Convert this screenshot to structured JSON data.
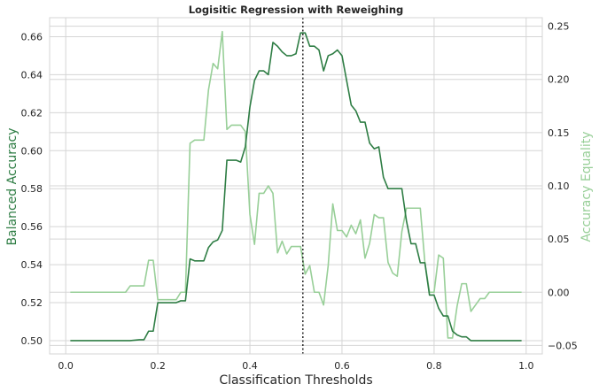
{
  "chart_data": {
    "type": "line",
    "title": "Logisitic Regression with Reweighing",
    "xlabel": "Classification Thresholds",
    "ylabel_left": "Balanced Accuracy",
    "ylabel_right": "Accuracy Equality",
    "xlim": [
      -0.035,
      1.035
    ],
    "ylim_left": [
      0.493,
      0.67
    ],
    "ylim_right": [
      -0.058,
      0.258
    ],
    "x_ticks": [
      0.0,
      0.2,
      0.4,
      0.6,
      0.8,
      1.0
    ],
    "x_tick_labels": [
      "0.0",
      "0.2",
      "0.4",
      "0.6",
      "0.8",
      "1.0"
    ],
    "y_left_ticks": [
      0.5,
      0.52,
      0.54,
      0.56,
      0.58,
      0.6,
      0.62,
      0.64,
      0.66
    ],
    "y_left_tick_labels": [
      "0.50",
      "0.52",
      "0.54",
      "0.56",
      "0.58",
      "0.60",
      "0.62",
      "0.64",
      "0.66"
    ],
    "y_right_ticks": [
      -0.05,
      0.0,
      0.05,
      0.1,
      0.15,
      0.2,
      0.25
    ],
    "y_right_tick_labels": [
      "−0.05",
      "0.00",
      "0.05",
      "0.10",
      "0.15",
      "0.20",
      "0.25"
    ],
    "grid": true,
    "vline_x": 0.515,
    "colors": {
      "balanced_accuracy": "#2e7d44",
      "accuracy_equality": "#98cf98",
      "vline": "#262626",
      "grid": "#d5d5d5",
      "left_label": "#2e7d44",
      "right_label": "#98cf98"
    },
    "series": [
      {
        "axis": "left",
        "points": [
          [
            0.01,
            0.5
          ],
          [
            0.14,
            0.5
          ],
          [
            0.16,
            0.5005
          ],
          [
            0.17,
            0.5005
          ],
          [
            0.18,
            0.505
          ],
          [
            0.19,
            0.505
          ],
          [
            0.2,
            0.52
          ],
          [
            0.24,
            0.52
          ],
          [
            0.25,
            0.521
          ],
          [
            0.26,
            0.521
          ],
          [
            0.27,
            0.543
          ],
          [
            0.28,
            0.542
          ],
          [
            0.3,
            0.542
          ],
          [
            0.31,
            0.549
          ],
          [
            0.32,
            0.552
          ],
          [
            0.33,
            0.553
          ],
          [
            0.34,
            0.558
          ],
          [
            0.35,
            0.595
          ],
          [
            0.37,
            0.595
          ],
          [
            0.38,
            0.594
          ],
          [
            0.39,
            0.602
          ],
          [
            0.4,
            0.623
          ],
          [
            0.41,
            0.637
          ],
          [
            0.42,
            0.642
          ],
          [
            0.43,
            0.642
          ],
          [
            0.44,
            0.64
          ],
          [
            0.45,
            0.657
          ],
          [
            0.46,
            0.655
          ],
          [
            0.47,
            0.652
          ],
          [
            0.48,
            0.65
          ],
          [
            0.49,
            0.65
          ],
          [
            0.5,
            0.651
          ],
          [
            0.51,
            0.662
          ],
          [
            0.52,
            0.662
          ],
          [
            0.53,
            0.655
          ],
          [
            0.54,
            0.655
          ],
          [
            0.55,
            0.653
          ],
          [
            0.56,
            0.642
          ],
          [
            0.57,
            0.65
          ],
          [
            0.58,
            0.651
          ],
          [
            0.59,
            0.653
          ],
          [
            0.6,
            0.65
          ],
          [
            0.61,
            0.637
          ],
          [
            0.62,
            0.624
          ],
          [
            0.63,
            0.621
          ],
          [
            0.64,
            0.615
          ],
          [
            0.65,
            0.615
          ],
          [
            0.66,
            0.604
          ],
          [
            0.67,
            0.601
          ],
          [
            0.68,
            0.602
          ],
          [
            0.69,
            0.586
          ],
          [
            0.7,
            0.58
          ],
          [
            0.72,
            0.58
          ],
          [
            0.73,
            0.58
          ],
          [
            0.74,
            0.563
          ],
          [
            0.75,
            0.551
          ],
          [
            0.76,
            0.551
          ],
          [
            0.77,
            0.541
          ],
          [
            0.78,
            0.541
          ],
          [
            0.79,
            0.524
          ],
          [
            0.8,
            0.524
          ],
          [
            0.81,
            0.517
          ],
          [
            0.82,
            0.513
          ],
          [
            0.83,
            0.513
          ],
          [
            0.84,
            0.505
          ],
          [
            0.85,
            0.503
          ],
          [
            0.86,
            0.502
          ],
          [
            0.87,
            0.502
          ],
          [
            0.88,
            0.5
          ],
          [
            0.99,
            0.5
          ]
        ]
      },
      {
        "axis": "right",
        "points": [
          [
            0.01,
            0.0
          ],
          [
            0.13,
            0.0
          ],
          [
            0.14,
            0.006
          ],
          [
            0.17,
            0.006
          ],
          [
            0.18,
            0.03
          ],
          [
            0.19,
            0.03
          ],
          [
            0.2,
            -0.007
          ],
          [
            0.24,
            -0.007
          ],
          [
            0.25,
            0.0
          ],
          [
            0.26,
            0.0
          ],
          [
            0.27,
            0.14
          ],
          [
            0.28,
            0.143
          ],
          [
            0.3,
            0.143
          ],
          [
            0.31,
            0.19
          ],
          [
            0.32,
            0.215
          ],
          [
            0.33,
            0.21
          ],
          [
            0.34,
            0.245
          ],
          [
            0.35,
            0.153
          ],
          [
            0.36,
            0.157
          ],
          [
            0.38,
            0.157
          ],
          [
            0.39,
            0.151
          ],
          [
            0.4,
            0.073
          ],
          [
            0.41,
            0.045
          ],
          [
            0.42,
            0.093
          ],
          [
            0.43,
            0.093
          ],
          [
            0.44,
            0.1
          ],
          [
            0.45,
            0.093
          ],
          [
            0.46,
            0.037
          ],
          [
            0.47,
            0.048
          ],
          [
            0.48,
            0.036
          ],
          [
            0.49,
            0.043
          ],
          [
            0.5,
            0.043
          ],
          [
            0.51,
            0.043
          ],
          [
            0.52,
            0.017
          ],
          [
            0.53,
            0.025
          ],
          [
            0.54,
            0.0
          ],
          [
            0.55,
            0.0
          ],
          [
            0.56,
            -0.012
          ],
          [
            0.57,
            0.025
          ],
          [
            0.58,
            0.083
          ],
          [
            0.59,
            0.058
          ],
          [
            0.6,
            0.058
          ],
          [
            0.61,
            0.052
          ],
          [
            0.62,
            0.063
          ],
          [
            0.63,
            0.055
          ],
          [
            0.64,
            0.068
          ],
          [
            0.65,
            0.032
          ],
          [
            0.66,
            0.046
          ],
          [
            0.67,
            0.073
          ],
          [
            0.68,
            0.07
          ],
          [
            0.69,
            0.07
          ],
          [
            0.7,
            0.028
          ],
          [
            0.71,
            0.018
          ],
          [
            0.72,
            0.015
          ],
          [
            0.73,
            0.057
          ],
          [
            0.74,
            0.079
          ],
          [
            0.77,
            0.079
          ],
          [
            0.78,
            0.028
          ],
          [
            0.79,
            0.0
          ],
          [
            0.8,
            0.0
          ],
          [
            0.81,
            0.035
          ],
          [
            0.82,
            0.032
          ],
          [
            0.83,
            -0.043
          ],
          [
            0.84,
            -0.043
          ],
          [
            0.85,
            -0.013
          ],
          [
            0.86,
            0.008
          ],
          [
            0.87,
            0.008
          ],
          [
            0.88,
            -0.018
          ],
          [
            0.89,
            -0.012
          ],
          [
            0.9,
            -0.006
          ],
          [
            0.91,
            -0.006
          ],
          [
            0.92,
            0.0
          ],
          [
            0.99,
            0.0
          ]
        ]
      }
    ]
  }
}
